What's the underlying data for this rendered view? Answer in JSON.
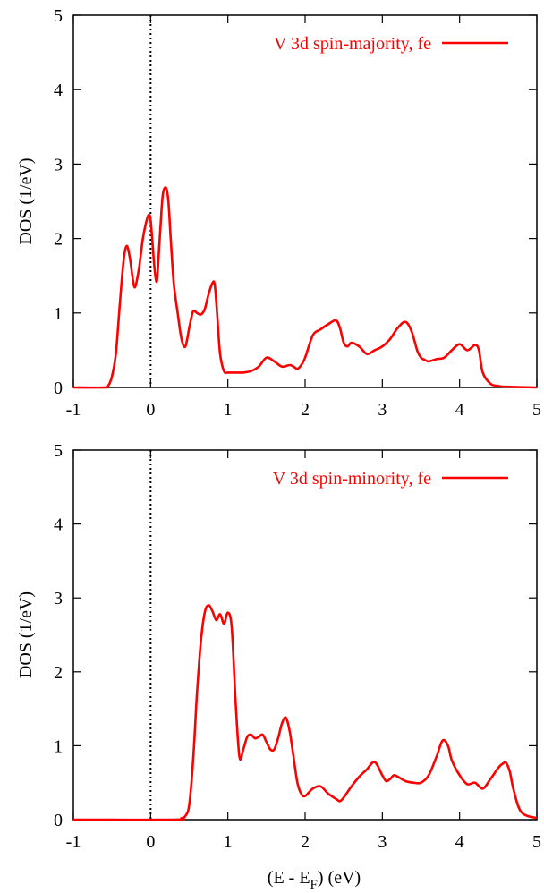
{
  "chart_data": [
    {
      "type": "line",
      "xlim": [
        -1,
        5
      ],
      "ylim": [
        0,
        5
      ],
      "xticks": [
        -1,
        0,
        1,
        2,
        3,
        4,
        5
      ],
      "yticks": [
        0,
        1,
        2,
        3,
        4,
        5
      ],
      "ylabel": "DOS (1/eV)",
      "xlabel": "",
      "grid": false,
      "legend_position": "top-right",
      "fermi_line_x": 0,
      "series": [
        {
          "name": "V 3d spin-majority, fe",
          "color": "#ff0000",
          "x": [
            -1.0,
            -0.6,
            -0.55,
            -0.5,
            -0.45,
            -0.4,
            -0.35,
            -0.31,
            -0.27,
            -0.23,
            -0.2,
            -0.15,
            -0.1,
            -0.05,
            -0.02,
            0.0,
            0.02,
            0.05,
            0.08,
            0.1,
            0.13,
            0.16,
            0.2,
            0.23,
            0.26,
            0.3,
            0.35,
            0.4,
            0.45,
            0.5,
            0.55,
            0.6,
            0.65,
            0.7,
            0.75,
            0.8,
            0.83,
            0.86,
            0.9,
            0.95,
            1.0,
            1.1,
            1.2,
            1.3,
            1.4,
            1.5,
            1.6,
            1.7,
            1.8,
            1.85,
            1.9,
            1.95,
            2.0,
            2.1,
            2.2,
            2.3,
            2.4,
            2.45,
            2.5,
            2.55,
            2.6,
            2.7,
            2.8,
            2.9,
            3.0,
            3.1,
            3.2,
            3.3,
            3.38,
            3.45,
            3.5,
            3.55,
            3.6,
            3.7,
            3.8,
            3.9,
            4.0,
            4.1,
            4.2,
            4.25,
            4.3,
            4.4,
            4.5,
            4.6,
            5.0
          ],
          "y": [
            0.0,
            0.0,
            0.02,
            0.15,
            0.45,
            1.1,
            1.7,
            1.9,
            1.75,
            1.45,
            1.35,
            1.6,
            2.0,
            2.25,
            2.32,
            2.25,
            2.0,
            1.6,
            1.42,
            1.7,
            2.2,
            2.6,
            2.68,
            2.5,
            2.0,
            1.4,
            1.0,
            0.65,
            0.55,
            0.8,
            1.02,
            1.0,
            0.98,
            1.05,
            1.25,
            1.4,
            1.38,
            1.0,
            0.45,
            0.22,
            0.2,
            0.2,
            0.2,
            0.22,
            0.28,
            0.4,
            0.35,
            0.28,
            0.3,
            0.28,
            0.25,
            0.3,
            0.4,
            0.7,
            0.78,
            0.85,
            0.9,
            0.8,
            0.6,
            0.55,
            0.6,
            0.55,
            0.45,
            0.5,
            0.55,
            0.65,
            0.8,
            0.88,
            0.75,
            0.5,
            0.4,
            0.37,
            0.35,
            0.38,
            0.4,
            0.5,
            0.58,
            0.5,
            0.57,
            0.5,
            0.2,
            0.05,
            0.02,
            0.01,
            0.0
          ]
        }
      ]
    },
    {
      "type": "line",
      "xlim": [
        -1,
        5
      ],
      "ylim": [
        0,
        5
      ],
      "xticks": [
        -1,
        0,
        1,
        2,
        3,
        4,
        5
      ],
      "yticks": [
        0,
        1,
        2,
        3,
        4,
        5
      ],
      "ylabel": "DOS (1/eV)",
      "xlabel": "(E - E_F) (eV)",
      "xlabel_main": "(E - E",
      "xlabel_sub": "F",
      "xlabel_tail": ") (eV)",
      "grid": false,
      "legend_position": "top-right",
      "fermi_line_x": 0,
      "series": [
        {
          "name": "V 3d spin-minority, fe",
          "color": "#ff0000",
          "x": [
            -1.0,
            0.3,
            0.4,
            0.45,
            0.5,
            0.55,
            0.6,
            0.65,
            0.7,
            0.75,
            0.8,
            0.85,
            0.9,
            0.95,
            1.0,
            1.05,
            1.1,
            1.15,
            1.2,
            1.25,
            1.3,
            1.35,
            1.4,
            1.45,
            1.5,
            1.55,
            1.6,
            1.65,
            1.7,
            1.75,
            1.8,
            1.85,
            1.9,
            1.95,
            2.0,
            2.1,
            2.2,
            2.3,
            2.4,
            2.45,
            2.5,
            2.6,
            2.7,
            2.8,
            2.9,
            3.0,
            3.05,
            3.1,
            3.15,
            3.2,
            3.3,
            3.4,
            3.5,
            3.6,
            3.7,
            3.78,
            3.85,
            3.9,
            4.0,
            4.1,
            4.2,
            4.3,
            4.4,
            4.5,
            4.55,
            4.6,
            4.65,
            4.7,
            4.8,
            5.0
          ],
          "y": [
            0.0,
            0.0,
            0.02,
            0.05,
            0.2,
            0.8,
            1.7,
            2.4,
            2.8,
            2.9,
            2.82,
            2.7,
            2.78,
            2.65,
            2.8,
            2.6,
            1.6,
            0.85,
            0.95,
            1.12,
            1.15,
            1.1,
            1.12,
            1.15,
            1.05,
            0.95,
            0.95,
            1.1,
            1.3,
            1.38,
            1.2,
            0.85,
            0.5,
            0.35,
            0.32,
            0.42,
            0.45,
            0.35,
            0.28,
            0.25,
            0.3,
            0.45,
            0.58,
            0.68,
            0.78,
            0.6,
            0.52,
            0.55,
            0.6,
            0.58,
            0.52,
            0.5,
            0.5,
            0.6,
            0.85,
            1.07,
            1.0,
            0.8,
            0.6,
            0.48,
            0.5,
            0.42,
            0.55,
            0.7,
            0.75,
            0.77,
            0.65,
            0.4,
            0.1,
            0.02
          ]
        }
      ]
    }
  ]
}
